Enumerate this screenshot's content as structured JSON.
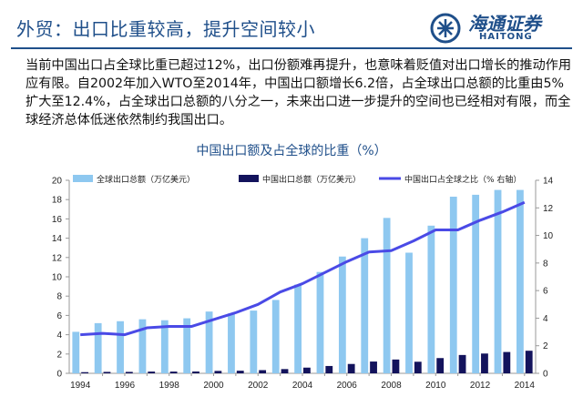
{
  "header": {
    "title": "外贸：出口比重较高，提升空间较小",
    "logo_cn": "海通证券",
    "logo_en": "HAITONG"
  },
  "paragraph": "当前中国出口占全球比重已超过12%，出口份额难再提升，也意味着贬值对出口增长的推动作用应有限。自2002年加入WTO至2014年，中国出口额增长6.2倍，占全球出口总额的比重由5%扩大至12.4%，占全球出口总额的八分之一，未来出口进一步提升的空间也已经相对有限，而全球经济总体低迷依然制约我国出口。",
  "colors": {
    "brand": "#1f4f8a",
    "global_bar": "#8ec8f0",
    "china_bar": "#13135c",
    "share_line": "#4a4ae6"
  },
  "chart_data": {
    "type": "bar+line",
    "title": "中国出口额及占全球的比重（%）",
    "categories": [
      "1994",
      "1995",
      "1996",
      "1997",
      "1998",
      "1999",
      "2000",
      "2001",
      "2002",
      "2003",
      "2004",
      "2005",
      "2006",
      "2007",
      "2008",
      "2009",
      "2010",
      "2011",
      "2012",
      "2013",
      "2014"
    ],
    "x_tick_labels": [
      "1994",
      "1996",
      "1998",
      "2000",
      "2002",
      "2004",
      "2006",
      "2008",
      "2010",
      "2012",
      "2014"
    ],
    "left_axis": {
      "min": 0,
      "max": 20,
      "ticks": [
        0,
        2,
        4,
        6,
        8,
        10,
        12,
        14,
        16,
        18,
        20
      ]
    },
    "right_axis": {
      "min": 0,
      "max": 14,
      "ticks": [
        0,
        2,
        4,
        6,
        8,
        10,
        12,
        14
      ]
    },
    "series": [
      {
        "name": "全球出口总额（万亿美元）",
        "kind": "bar",
        "axis": "left",
        "values": [
          4.3,
          5.2,
          5.4,
          5.6,
          5.5,
          5.7,
          6.4,
          6.2,
          6.5,
          7.6,
          9.2,
          10.5,
          12.1,
          14.0,
          16.1,
          12.5,
          15.3,
          18.3,
          18.5,
          19.0,
          19.0
        ]
      },
      {
        "name": "中国出口总额（万亿美元）",
        "kind": "bar",
        "axis": "left",
        "values": [
          0.12,
          0.15,
          0.15,
          0.18,
          0.18,
          0.19,
          0.25,
          0.27,
          0.33,
          0.44,
          0.59,
          0.76,
          0.97,
          1.22,
          1.43,
          1.2,
          1.58,
          1.9,
          2.05,
          2.21,
          2.34
        ]
      },
      {
        "name": "中国出口占全球之比（%  右轴）",
        "kind": "line",
        "axis": "right",
        "values": [
          2.8,
          2.9,
          2.8,
          3.3,
          3.4,
          3.4,
          3.9,
          4.4,
          5.0,
          5.9,
          6.5,
          7.3,
          8.1,
          8.8,
          8.9,
          9.6,
          10.4,
          10.4,
          11.1,
          11.7,
          12.4
        ]
      }
    ],
    "legend_position": "top",
    "grid": false
  }
}
